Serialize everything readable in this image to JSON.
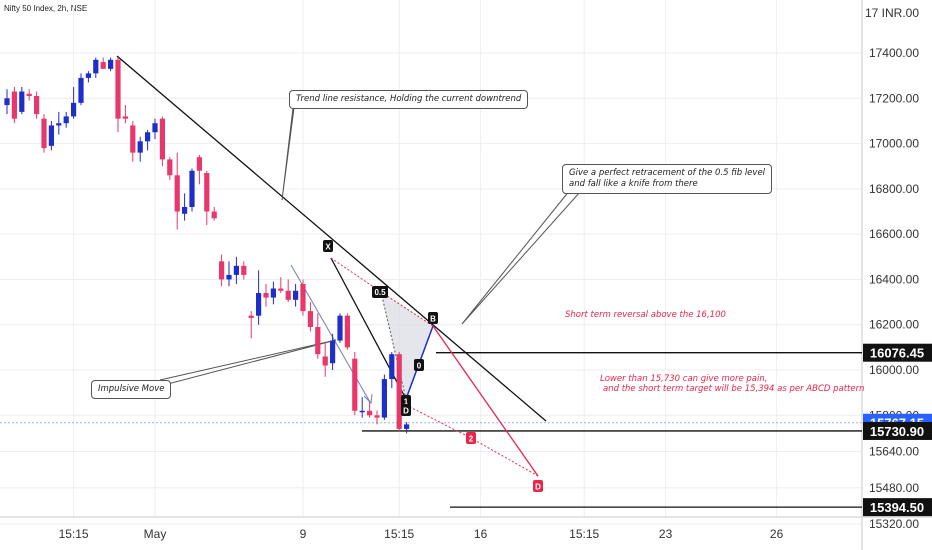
{
  "chart_data": {
    "type": "candlestick",
    "symbol": "Nifty 50 Index, 2h, NSE",
    "currency": "INR",
    "colors": {
      "up": "#1e2ec8",
      "down": "#e8376a",
      "grid": "#eeeeee",
      "red": "#e8264a"
    },
    "ylim": [
      15260,
      17560
    ],
    "y_ticks": [
      {
        "v": 17400,
        "label": "17400.00"
      },
      {
        "v": 17200,
        "label": "17200.00"
      },
      {
        "v": 17000,
        "label": "17000.00"
      },
      {
        "v": 16800,
        "label": "16800.00"
      },
      {
        "v": 16600,
        "label": "16600.00"
      },
      {
        "v": 16400,
        "label": "16400.00"
      },
      {
        "v": 16200,
        "label": "16200.00"
      },
      {
        "v": 16000,
        "label": "16000.00"
      },
      {
        "v": 15800,
        "label": "15800.00"
      },
      {
        "v": 15640,
        "label": "15640.00"
      },
      {
        "v": 15480,
        "label": "15480.00"
      },
      {
        "v": 15320,
        "label": "15320.00"
      }
    ],
    "top_tick_label": "17 INR.00",
    "x_ticks": [
      {
        "i": 9,
        "label": "15:15"
      },
      {
        "i": 20,
        "label": "May"
      },
      {
        "i": 40,
        "label": "9"
      },
      {
        "i": 53,
        "label": "15:15"
      },
      {
        "i": 64,
        "label": "16"
      },
      {
        "i": 78,
        "label": "15:15"
      },
      {
        "i": 89,
        "label": "23"
      },
      {
        "i": 104,
        "label": "26"
      }
    ],
    "candles": [
      {
        "o": 17170,
        "h": 17240,
        "l": 17130,
        "c": 17200
      },
      {
        "o": 17230,
        "h": 17250,
        "l": 17090,
        "c": 17110
      },
      {
        "o": 17140,
        "h": 17250,
        "l": 17130,
        "c": 17230
      },
      {
        "o": 17220,
        "h": 17240,
        "l": 17190,
        "c": 17210
      },
      {
        "o": 17210,
        "h": 17230,
        "l": 17110,
        "c": 17130
      },
      {
        "o": 17110,
        "h": 17130,
        "l": 16960,
        "c": 16980
      },
      {
        "o": 16990,
        "h": 17100,
        "l": 16970,
        "c": 17080
      },
      {
        "o": 17080,
        "h": 17140,
        "l": 17040,
        "c": 17090
      },
      {
        "o": 17090,
        "h": 17140,
        "l": 17070,
        "c": 17120
      },
      {
        "o": 17120,
        "h": 17250,
        "l": 17110,
        "c": 17180
      },
      {
        "o": 17180,
        "h": 17310,
        "l": 17170,
        "c": 17290
      },
      {
        "o": 17290,
        "h": 17320,
        "l": 17270,
        "c": 17310
      },
      {
        "o": 17310,
        "h": 17380,
        "l": 17290,
        "c": 17370
      },
      {
        "o": 17360,
        "h": 17380,
        "l": 17340,
        "c": 17330
      },
      {
        "o": 17330,
        "h": 17380,
        "l": 17320,
        "c": 17370
      },
      {
        "o": 17370,
        "h": 17380,
        "l": 17050,
        "c": 17110
      },
      {
        "o": 17120,
        "h": 17170,
        "l": 17090,
        "c": 17110
      },
      {
        "o": 17080,
        "h": 17100,
        "l": 16920,
        "c": 16960
      },
      {
        "o": 16960,
        "h": 17030,
        "l": 16920,
        "c": 17010
      },
      {
        "o": 17010,
        "h": 17060,
        "l": 16970,
        "c": 17050
      },
      {
        "o": 17050,
        "h": 17110,
        "l": 17020,
        "c": 17090
      },
      {
        "o": 17110,
        "h": 17120,
        "l": 16900,
        "c": 16930
      },
      {
        "o": 16930,
        "h": 16940,
        "l": 16840,
        "c": 16860
      },
      {
        "o": 16860,
        "h": 16960,
        "l": 16620,
        "c": 16700
      },
      {
        "o": 16690,
        "h": 16780,
        "l": 16660,
        "c": 16720
      },
      {
        "o": 16720,
        "h": 16890,
        "l": 16700,
        "c": 16880
      },
      {
        "o": 16940,
        "h": 16950,
        "l": 16820,
        "c": 16880
      },
      {
        "o": 16870,
        "h": 16880,
        "l": 16640,
        "c": 16700
      },
      {
        "o": 16700,
        "h": 16720,
        "l": 16660,
        "c": 16670
      },
      {
        "o": 16480,
        "h": 16510,
        "l": 16370,
        "c": 16400
      },
      {
        "o": 16400,
        "h": 16480,
        "l": 16370,
        "c": 16420
      },
      {
        "o": 16420,
        "h": 16500,
        "l": 16380,
        "c": 16460
      },
      {
        "o": 16460,
        "h": 16480,
        "l": 16400,
        "c": 16420
      },
      {
        "o": 16240,
        "h": 16260,
        "l": 16140,
        "c": 16230
      },
      {
        "o": 16240,
        "h": 16440,
        "l": 16200,
        "c": 16340
      },
      {
        "o": 16340,
        "h": 16380,
        "l": 16280,
        "c": 16320
      },
      {
        "o": 16320,
        "h": 16390,
        "l": 16290,
        "c": 16360
      },
      {
        "o": 16360,
        "h": 16410,
        "l": 16340,
        "c": 16350
      },
      {
        "o": 16350,
        "h": 16400,
        "l": 16300,
        "c": 16310
      },
      {
        "o": 16310,
        "h": 16380,
        "l": 16280,
        "c": 16350
      },
      {
        "o": 16380,
        "h": 16400,
        "l": 16240,
        "c": 16260
      },
      {
        "o": 16260,
        "h": 16300,
        "l": 16170,
        "c": 16190
      },
      {
        "o": 16190,
        "h": 16250,
        "l": 16050,
        "c": 16070
      },
      {
        "o": 16060,
        "h": 16120,
        "l": 15970,
        "c": 16020
      },
      {
        "o": 16030,
        "h": 16160,
        "l": 16000,
        "c": 16130
      },
      {
        "o": 16130,
        "h": 16250,
        "l": 16120,
        "c": 16240
      },
      {
        "o": 16240,
        "h": 16250,
        "l": 16090,
        "c": 16100
      },
      {
        "o": 16050,
        "h": 16080,
        "l": 15800,
        "c": 15820
      },
      {
        "o": 15820,
        "h": 15880,
        "l": 15790,
        "c": 15820
      },
      {
        "o": 15820,
        "h": 15860,
        "l": 15790,
        "c": 15800
      },
      {
        "o": 15800,
        "h": 15820,
        "l": 15760,
        "c": 15790
      },
      {
        "o": 15790,
        "h": 15980,
        "l": 15780,
        "c": 15960
      },
      {
        "o": 15960,
        "h": 16080,
        "l": 15920,
        "c": 16070
      },
      {
        "o": 16070,
        "h": 16080,
        "l": 15730,
        "c": 15740
      },
      {
        "o": 15740,
        "h": 15770,
        "l": 15720,
        "c": 15760
      }
    ],
    "price_labels": [
      {
        "v": 16076.45,
        "label": "16076.45",
        "style": "black"
      },
      {
        "v": 15767.15,
        "label": "15767.15",
        "style": "blue"
      },
      {
        "v": 15730.9,
        "label": "15730.90",
        "style": "black"
      },
      {
        "v": 15394.5,
        "label": "15394.50",
        "style": "black"
      }
    ],
    "annotations": {
      "trendline_note": "Trend line resistance, Holding the current downtrend",
      "fib_note_1": "Give a perfect retracement of the 0.5 fib level",
      "fib_note_2": "and fall like a knife from there",
      "impulse_note": "Impulsive Move",
      "reversal_note": "Short term reversal  above the 16,100",
      "target_note_1": "Lower than 15,730 can give more pain,",
      "target_note_2": "and the short term target will be 15,394 as per ABCD pattern"
    },
    "pattern_labels": [
      "X",
      "0.5",
      "B",
      "0",
      "1",
      "D",
      "2",
      "D"
    ]
  }
}
